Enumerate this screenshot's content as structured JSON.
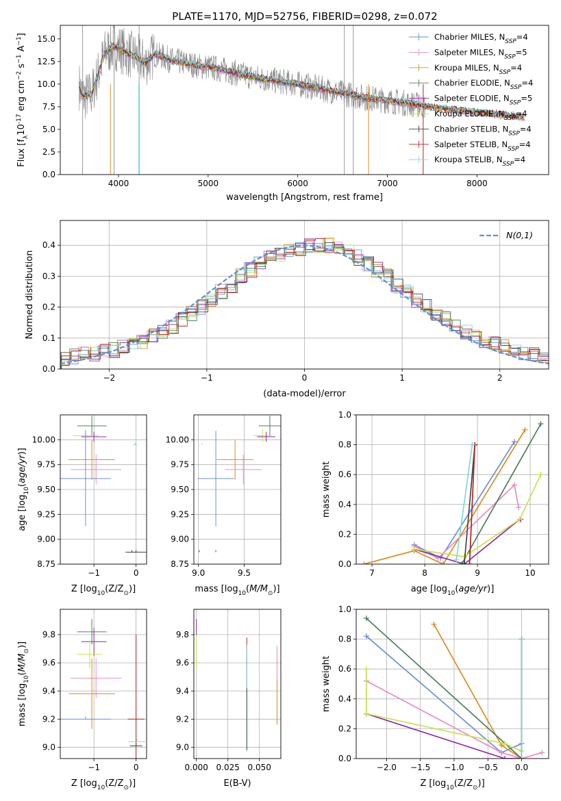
{
  "figure_title": "PLATE=1170, MJD=52756, FIBERID=0298, z=0.072",
  "colors": {
    "Chabrier MILES": "#6a8fd8",
    "Salpeter MILES": "#e88ac6",
    "Kroupa MILES": "#d98c1f",
    "Chabrier ELODIE": "#4e7d5b",
    "Salpeter ELODIE": "#8e2aa3",
    "Kroupa ELODIE": "#c8e04a",
    "Chabrier STELIB": "#444444",
    "Salpeter STELIB": "#b22222",
    "Kroupa STELIB": "#7fd8d8",
    "data": "#808080",
    "normal": "#5b8fd6"
  },
  "chart_data": [
    {
      "type": "line",
      "ylabel_main": "Flux [f",
      "ylabel_rest": "10",
      "ylabel_exp": "-17",
      "ylabel_unit": "erg cm",
      "xlabel": "wavelength [Angstrom, rest frame]",
      "xlim": [
        3350,
        8800
      ],
      "ylim": [
        0,
        16.5
      ],
      "xticks": [
        4000,
        5000,
        6000,
        7000,
        8000
      ],
      "yticks": [
        0.0,
        2.5,
        5.0,
        7.5,
        10.0,
        12.5,
        15.0
      ],
      "grid": false,
      "legend_position": "top-right",
      "legend": [
        {
          "name": "Chabrier MILES",
          "n": "4"
        },
        {
          "name": "Salpeter MILES",
          "n": "5"
        },
        {
          "name": "Kroupa MILES",
          "n": "4"
        },
        {
          "name": "Chabrier ELODIE",
          "n": "4"
        },
        {
          "name": "Salpeter ELODIE",
          "n": "5"
        },
        {
          "name": "Kroupa ELODIE",
          "n": "4"
        },
        {
          "name": "Chabrier STELIB",
          "n": "4"
        },
        {
          "name": "Salpeter STELIB",
          "n": "4"
        },
        {
          "name": "Kroupa STELIB",
          "n": "4"
        }
      ],
      "legend_label_suffix": ", N",
      "legend_sub": "SSP",
      "model_continuum": [
        [
          3560,
          9.8
        ],
        [
          3600,
          8.6
        ],
        [
          3700,
          8.9
        ],
        [
          3800,
          12.0
        ],
        [
          3850,
          13.5
        ],
        [
          3950,
          14.2
        ],
        [
          4000,
          14.0
        ],
        [
          4100,
          13.4
        ],
        [
          4200,
          13.0
        ],
        [
          4300,
          12.3
        ],
        [
          4400,
          13.3
        ],
        [
          4500,
          13.0
        ],
        [
          4600,
          12.6
        ],
        [
          4700,
          12.4
        ],
        [
          4800,
          12.2
        ],
        [
          4900,
          12.0
        ],
        [
          5000,
          11.9
        ],
        [
          5200,
          11.5
        ],
        [
          5400,
          11.0
        ],
        [
          5600,
          10.6
        ],
        [
          5800,
          10.3
        ],
        [
          6000,
          10.0
        ],
        [
          6200,
          9.6
        ],
        [
          6400,
          9.2
        ],
        [
          6600,
          8.8
        ],
        [
          6800,
          8.4
        ],
        [
          7000,
          8.2
        ],
        [
          7200,
          7.9
        ],
        [
          7400,
          7.6
        ],
        [
          7600,
          7.3
        ],
        [
          7800,
          7.1
        ],
        [
          8000,
          6.9
        ],
        [
          8200,
          6.7
        ],
        [
          8400,
          6.5
        ],
        [
          8530,
          6.3
        ]
      ],
      "data_spikes": [
        [
          3600,
          16.5
        ],
        [
          3950,
          16.5
        ],
        [
          4230,
          16.5
        ],
        [
          6520,
          16.5
        ],
        [
          6620,
          16.5
        ]
      ]
    },
    {
      "type": "bar",
      "ylabel": "Normed distribution",
      "xlabel": "(data-model)/error",
      "xlim": [
        -2.5,
        2.5
      ],
      "ylim": [
        0,
        0.48
      ],
      "xticks": [
        -2,
        -1,
        0,
        1,
        2
      ],
      "yticks": [
        0.0,
        0.1,
        0.2,
        0.3,
        0.4
      ],
      "grid": true,
      "legend_position": "top-right",
      "legend": "N(0,1)",
      "bin_width": 0.1,
      "bin_start": -2.5,
      "base_values": [
        0.03,
        0.04,
        0.05,
        0.05,
        0.06,
        0.06,
        0.07,
        0.08,
        0.09,
        0.11,
        0.12,
        0.14,
        0.16,
        0.18,
        0.2,
        0.22,
        0.25,
        0.27,
        0.3,
        0.32,
        0.34,
        0.36,
        0.37,
        0.38,
        0.39,
        0.4,
        0.4,
        0.4,
        0.39,
        0.38,
        0.36,
        0.34,
        0.32,
        0.3,
        0.27,
        0.25,
        0.22,
        0.2,
        0.18,
        0.16,
        0.14,
        0.12,
        0.11,
        0.09,
        0.08,
        0.07,
        0.06,
        0.05,
        0.05,
        0.04
      ]
    },
    {
      "type": "scatter",
      "ylabel": "age  [log",
      "xlabel": "Z [log",
      "xlim": [
        -1.8,
        0.25
      ],
      "ylim": [
        8.75,
        10.25
      ],
      "xticks": [
        -1,
        0
      ],
      "yticks": [
        8.75,
        9.0,
        9.25,
        9.5,
        9.75,
        10.0
      ],
      "grid": true,
      "points": [
        {
          "model": "Chabrier ELODIE",
          "x": -1.05,
          "y": 10.14,
          "xerr": 0.35,
          "yerr": 0.1
        },
        {
          "model": "Kroupa ELODIE",
          "x": -1.2,
          "y": 10.04,
          "xerr": 0.3,
          "yerr": 0.06
        },
        {
          "model": "Salpeter ELODIE",
          "x": -1.0,
          "y": 10.03,
          "xerr": 0.3,
          "yerr": 0.05
        },
        {
          "model": "Kroupa MILES",
          "x": -1.05,
          "y": 9.8,
          "xerr": 0.55,
          "yerr": 0.2
        },
        {
          "model": "Salpeter MILES",
          "x": -0.95,
          "y": 9.7,
          "xerr": 0.6,
          "yerr": 0.15
        },
        {
          "model": "Chabrier MILES",
          "x": -1.2,
          "y": 9.61,
          "xerr": 0.6,
          "yerr": 0.48
        },
        {
          "model": "Kroupa STELIB",
          "x": -0.02,
          "y": 9.95,
          "xerr": 0.05,
          "yerr": 0.0
        },
        {
          "model": "Salpeter STELIB",
          "x": -0.1,
          "y": 8.87,
          "xerr": 0.1,
          "yerr": 0.0
        },
        {
          "model": "Chabrier STELIB",
          "x": 0.0,
          "y": 8.87,
          "xerr": 0.25,
          "yerr": 0.0
        }
      ]
    },
    {
      "type": "scatter",
      "ylabel": "",
      "xlabel": "mass [log",
      "xlim": [
        8.95,
        9.9
      ],
      "ylim": [
        8.75,
        10.25
      ],
      "xticks": [
        9.0,
        9.5
      ],
      "yticks": [
        8.75,
        9.0,
        9.25,
        9.5,
        9.75,
        10.0
      ],
      "grid": true,
      "points": [
        {
          "model": "Chabrier ELODIE",
          "x": 9.78,
          "y": 10.14,
          "xerr": 0.12,
          "yerr": 0.1
        },
        {
          "model": "Kroupa ELODIE",
          "x": 9.7,
          "y": 10.04,
          "xerr": 0.1,
          "yerr": 0.06
        },
        {
          "model": "Salpeter ELODIE",
          "x": 9.74,
          "y": 10.03,
          "xerr": 0.1,
          "yerr": 0.05
        },
        {
          "model": "Kroupa MILES",
          "x": 9.4,
          "y": 9.8,
          "xerr": 0.2,
          "yerr": 0.2
        },
        {
          "model": "Salpeter MILES",
          "x": 9.49,
          "y": 9.7,
          "xerr": 0.2,
          "yerr": 0.15
        },
        {
          "model": "Chabrier MILES",
          "x": 9.19,
          "y": 9.61,
          "xerr": 0.2,
          "yerr": 0.48
        },
        {
          "model": "Kroupa STELIB",
          "x": 9.04,
          "y": 9.95,
          "xerr": 0.0,
          "yerr": 0.0
        },
        {
          "model": "Salpeter STELIB",
          "x": 9.19,
          "y": 8.87,
          "xerr": 0.0,
          "yerr": 0.0
        },
        {
          "model": "Chabrier STELIB",
          "x": 9.01,
          "y": 8.87,
          "xerr": 0.0,
          "yerr": 0.0
        }
      ]
    },
    {
      "type": "line",
      "ylabel": "mass weight",
      "xlabel": "age  [log",
      "xlim": [
        6.7,
        10.35
      ],
      "ylim": [
        0,
        1.0
      ],
      "xticks": [
        7,
        8,
        9,
        10
      ],
      "yticks": [
        0.0,
        0.2,
        0.4,
        0.6,
        0.8,
        1.0
      ],
      "grid": true,
      "series": [
        {
          "name": "Chabrier MILES",
          "x": [
            7.8,
            8.3,
            9.7
          ],
          "y": [
            0.13,
            0.04,
            0.82
          ]
        },
        {
          "name": "Salpeter MILES",
          "x": [
            7.8,
            8.25,
            9.7,
            9.78
          ],
          "y": [
            0.12,
            0.04,
            0.53,
            0.38
          ]
        },
        {
          "name": "Kroupa MILES",
          "x": [
            6.85,
            7.8,
            8.35,
            9.9
          ],
          "y": [
            0.0,
            0.09,
            0.0,
            0.9
          ]
        },
        {
          "name": "Chabrier ELODIE",
          "x": [
            8.7,
            10.2
          ],
          "y": [
            0.0,
            0.94
          ]
        },
        {
          "name": "Salpeter ELODIE",
          "x": [
            7.8,
            8.75,
            9.8,
            9.82
          ],
          "y": [
            0.1,
            0.0,
            0.3,
            0.3
          ]
        },
        {
          "name": "Kroupa ELODIE",
          "x": [
            7.8,
            8.75,
            9.8,
            10.2
          ],
          "y": [
            0.1,
            0.05,
            0.3,
            0.6
          ]
        },
        {
          "name": "Chabrier STELIB",
          "x": [
            8.75,
            8.95
          ],
          "y": [
            0.0,
            0.8
          ]
        },
        {
          "name": "Salpeter STELIB",
          "x": [
            8.85,
            8.95
          ],
          "y": [
            0.0,
            0.8
          ]
        },
        {
          "name": "Kroupa STELIB",
          "x": [
            8.6,
            8.9
          ],
          "y": [
            0.03,
            0.8
          ]
        }
      ]
    },
    {
      "type": "scatter",
      "ylabel": "mass [log",
      "xlabel": "Z [log",
      "xlim": [
        -1.8,
        0.25
      ],
      "ylim": [
        8.92,
        9.98
      ],
      "xticks": [
        -1,
        0
      ],
      "yticks": [
        9.0,
        9.2,
        9.4,
        9.6,
        9.8
      ],
      "grid": true,
      "points": [
        {
          "model": "Chabrier ELODIE",
          "x": -1.05,
          "y": 9.82,
          "xerr": 0.35,
          "yerr": 0.09
        },
        {
          "model": "Salpeter ELODIE",
          "x": -1.0,
          "y": 9.75,
          "xerr": 0.3,
          "yerr": 0.1
        },
        {
          "model": "Kroupa ELODIE",
          "x": -1.1,
          "y": 9.66,
          "xerr": 0.3,
          "yerr": 0.1
        },
        {
          "model": "Salpeter MILES",
          "x": -0.95,
          "y": 9.49,
          "xerr": 0.6,
          "yerr": 0.14
        },
        {
          "model": "Kroupa MILES",
          "x": -1.05,
          "y": 9.38,
          "xerr": 0.55,
          "yerr": 0.25
        },
        {
          "model": "Chabrier MILES",
          "x": -1.2,
          "y": 9.2,
          "xerr": 0.6,
          "yerr": 0.0
        },
        {
          "model": "Salpeter STELIB",
          "x": 0.0,
          "y": 9.2,
          "xerr": 0.2,
          "yerr": 0.6
        },
        {
          "model": "Kroupa STELIB",
          "x": 0.02,
          "y": 9.04,
          "xerr": 0.2,
          "yerr": 0.0
        },
        {
          "model": "Chabrier STELIB",
          "x": 0.0,
          "y": 9.01,
          "xerr": 0.15,
          "yerr": 0.0
        }
      ]
    },
    {
      "type": "scatter",
      "ylabel": "",
      "xlabel": "E(B-V)",
      "xlim": [
        -0.002,
        0.067
      ],
      "ylim": [
        8.92,
        9.98
      ],
      "xticks": [
        0.0,
        0.025,
        0.05
      ],
      "xtick_labels": [
        "0.000",
        "0.025",
        "0.050"
      ],
      "yticks": [
        9.0,
        9.2,
        9.4,
        9.6,
        9.8
      ],
      "grid": true,
      "points": [
        {
          "model": "Salpeter ELODIE",
          "x": 0.0,
          "y": 9.85,
          "yerr": 0.06
        },
        {
          "model": "Kroupa ELODIE",
          "x": 0.0,
          "y": 9.68,
          "yerr": 0.12
        },
        {
          "model": "Salpeter STELIB",
          "x": 0.04,
          "y": 9.6,
          "yerr": 0.18
        },
        {
          "model": "Kroupa STELIB",
          "x": 0.04,
          "y": 9.35,
          "yerr": 0.38
        },
        {
          "model": "Chabrier STELIB",
          "x": 0.04,
          "y": 9.2,
          "yerr": 0.22
        },
        {
          "model": "Kroupa MILES",
          "x": 0.064,
          "y": 9.4,
          "yerr": 0.24
        },
        {
          "model": "Salpeter MILES",
          "x": 0.064,
          "y": 9.6,
          "yerr": 0.12
        }
      ]
    },
    {
      "type": "line",
      "ylabel": "mass weight",
      "xlabel": "Z [log",
      "xlim": [
        -2.45,
        0.4
      ],
      "ylim": [
        0,
        1.0
      ],
      "xticks": [
        -2.0,
        -1.5,
        -1.0,
        -0.5,
        0.0
      ],
      "yticks": [
        0.0,
        0.2,
        0.4,
        0.6,
        0.8,
        1.0
      ],
      "grid": true,
      "series": [
        {
          "name": "Chabrier MILES",
          "x": [
            -2.3,
            -0.3,
            0.0
          ],
          "y": [
            0.82,
            0.04,
            0.1
          ]
        },
        {
          "name": "Salpeter MILES",
          "x": [
            -2.3,
            -0.3,
            0.0,
            0.3
          ],
          "y": [
            0.52,
            0.04,
            0.0,
            0.04
          ]
        },
        {
          "name": "Kroupa MILES",
          "x": [
            -1.3,
            -0.3,
            0.0
          ],
          "y": [
            0.9,
            0.09,
            0.0
          ]
        },
        {
          "name": "Chabrier ELODIE",
          "x": [
            -2.3,
            0.0
          ],
          "y": [
            0.94,
            0.0
          ]
        },
        {
          "name": "Salpeter ELODIE",
          "x": [
            -2.3,
            -2.3,
            -0.25,
            0.0
          ],
          "y": [
            0.3,
            0.3,
            0.0,
            0.0
          ]
        },
        {
          "name": "Kroupa ELODIE",
          "x": [
            -2.3,
            -2.3,
            -0.25,
            0.0
          ],
          "y": [
            0.6,
            0.3,
            0.1,
            0.05
          ]
        },
        {
          "name": "Chabrier STELIB",
          "x": [
            0.0,
            0.0
          ],
          "y": [
            0.0,
            0.8
          ]
        },
        {
          "name": "Salpeter STELIB",
          "x": [
            0.0,
            0.0
          ],
          "y": [
            0.0,
            0.8
          ]
        },
        {
          "name": "Kroupa STELIB",
          "x": [
            0.0,
            0.0
          ],
          "y": [
            0.0,
            0.8
          ]
        }
      ]
    }
  ]
}
